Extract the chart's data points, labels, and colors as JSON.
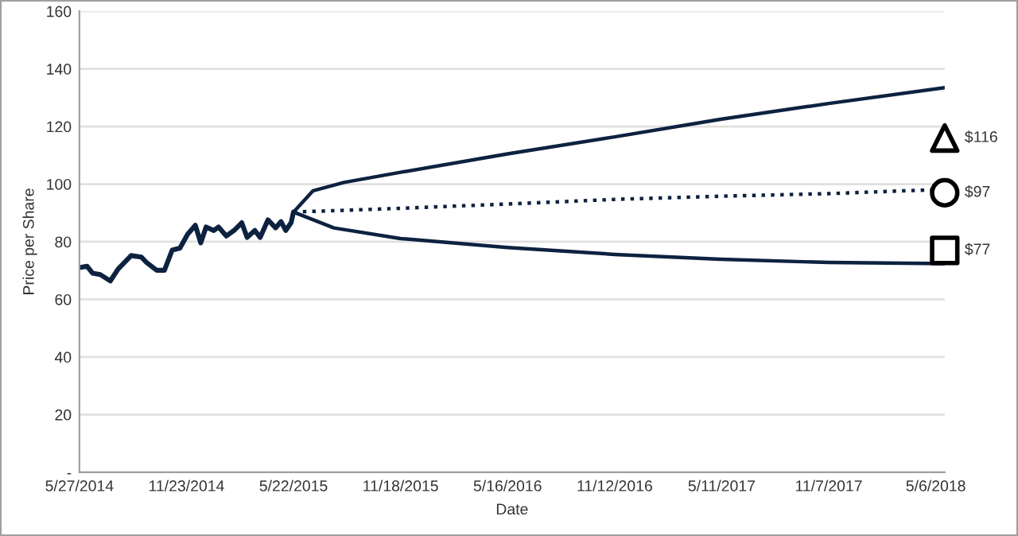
{
  "chart_data": {
    "type": "line",
    "xlabel": "Date",
    "ylabel": "Price per Share",
    "xlim": [
      "2014-05-27",
      "2018-05-21"
    ],
    "ylim": [
      0,
      160
    ],
    "xticks": [
      {
        "value": "2014-05-27",
        "label": "5/27/2014"
      },
      {
        "value": "2014-11-23",
        "label": "11/23/2014"
      },
      {
        "value": "2015-05-22",
        "label": "5/22/2015"
      },
      {
        "value": "2015-11-18",
        "label": "11/18/2015"
      },
      {
        "value": "2016-05-16",
        "label": "5/16/2016"
      },
      {
        "value": "2016-11-12",
        "label": "11/12/2016"
      },
      {
        "value": "2017-05-11",
        "label": "5/11/2017"
      },
      {
        "value": "2017-11-07",
        "label": "11/7/2017"
      },
      {
        "value": "2018-05-06",
        "label": "5/6/2018"
      }
    ],
    "yticks": [
      {
        "value": 0,
        "label": "-"
      },
      20,
      40,
      60,
      80,
      100,
      120,
      140,
      160
    ],
    "grid": "y",
    "legend": false,
    "series": [
      {
        "color": "#0d2240",
        "line_style": "solid",
        "x": [
          "2014-05-27",
          "2014-06-09",
          "2014-06-18",
          "2014-07-01",
          "2014-07-18",
          "2014-07-31",
          "2014-08-22",
          "2014-09-08",
          "2014-09-17",
          "2014-10-04",
          "2014-10-17",
          "2014-10-30",
          "2014-11-12",
          "2014-11-25",
          "2014-12-08",
          "2014-12-17",
          "2014-12-26",
          "2015-01-08",
          "2015-01-16",
          "2015-01-29",
          "2015-02-11",
          "2015-02-24",
          "2015-03-05",
          "2015-03-18",
          "2015-03-27",
          "2015-04-09",
          "2015-04-22",
          "2015-05-01",
          "2015-05-09",
          "2015-05-18",
          "2015-05-22"
        ],
        "values": [
          71.0,
          71.5,
          69.1,
          68.6,
          66.4,
          70.5,
          75.2,
          74.7,
          72.8,
          70.1,
          70.1,
          77.1,
          77.8,
          82.6,
          85.7,
          79.6,
          85.1,
          83.9,
          85.1,
          82.0,
          83.9,
          86.6,
          81.5,
          83.9,
          81.5,
          87.6,
          84.8,
          87.0,
          83.9,
          86.6,
          90.3
        ]
      },
      {
        "color": "#0d2240",
        "line_style": "solid",
        "x": [
          "2015-05-22",
          "2015-06-24",
          "2015-08-15",
          "2015-11-18",
          "2016-05-16",
          "2016-11-12",
          "2017-05-09",
          "2017-11-07",
          "2018-05-21"
        ],
        "values": [
          90.3,
          97.7,
          100.6,
          104.1,
          110.5,
          116.4,
          122.5,
          128.0,
          133.5
        ]
      },
      {
        "color": "#0d2240",
        "line_style": "dotted",
        "x": [
          "2015-05-22",
          "2015-11-18",
          "2016-05-16",
          "2016-11-12",
          "2017-05-09",
          "2017-11-07",
          "2018-05-21"
        ],
        "values": [
          90.3,
          91.6,
          93.1,
          94.7,
          95.8,
          96.7,
          98.2
        ]
      },
      {
        "color": "#0d2240",
        "line_style": "solid",
        "x": [
          "2015-05-22",
          "2015-07-29",
          "2015-11-18",
          "2016-05-16",
          "2016-11-12",
          "2017-05-09",
          "2017-11-07",
          "2018-05-21"
        ],
        "values": [
          90.3,
          84.8,
          81.1,
          78.0,
          75.6,
          73.9,
          72.8,
          72.4
        ]
      },
      {
        "type": "scatter",
        "color": "#000000",
        "marker": "triangle",
        "x": [
          "2018-05-21"
        ],
        "values": [
          116
        ],
        "value_labels": [
          "$116"
        ]
      },
      {
        "type": "scatter",
        "color": "#000000",
        "marker": "circle",
        "x": [
          "2018-05-21"
        ],
        "values": [
          97
        ],
        "value_labels": [
          "$97"
        ]
      },
      {
        "type": "scatter",
        "color": "#000000",
        "marker": "square",
        "x": [
          "2018-05-21"
        ],
        "values": [
          77
        ],
        "value_labels": [
          "$77"
        ]
      }
    ]
  }
}
